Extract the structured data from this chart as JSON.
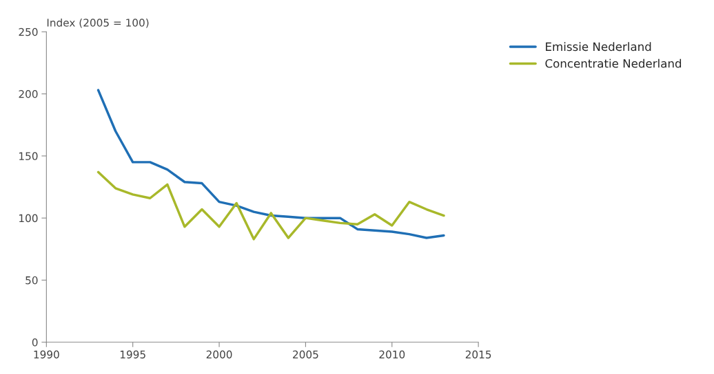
{
  "chart_data": {
    "type": "line",
    "ylabel": "Index (2005 = 100)",
    "x": [
      1993,
      1994,
      1995,
      1996,
      1997,
      1998,
      1999,
      2000,
      2001,
      2002,
      2003,
      2004,
      2005,
      2006,
      2007,
      2008,
      2009,
      2010,
      2011,
      2012,
      2013
    ],
    "series": [
      {
        "name": "Emissie Nederland",
        "color": "#1f6fb5",
        "values": [
          203,
          170,
          145,
          145,
          139,
          129,
          128,
          113,
          110,
          105,
          102,
          101,
          100,
          100,
          100,
          91,
          90,
          89,
          87,
          84,
          86
        ]
      },
      {
        "name": "Concentratie Nederland",
        "color": "#a8b82a",
        "values": [
          137,
          124,
          119,
          116,
          127,
          93,
          107,
          93,
          112,
          83,
          104,
          84,
          100,
          98,
          96,
          95,
          103,
          94,
          113,
          107,
          102
        ]
      }
    ],
    "xlim": [
      1990,
      2015
    ],
    "xticks": [
      1990,
      1995,
      2000,
      2005,
      2010,
      2015
    ],
    "ylim": [
      0,
      250
    ],
    "yticks": [
      0,
      50,
      100,
      150,
      200,
      250
    ],
    "grid": false,
    "legend": "top right",
    "line_style": "solid",
    "marker": "none"
  }
}
